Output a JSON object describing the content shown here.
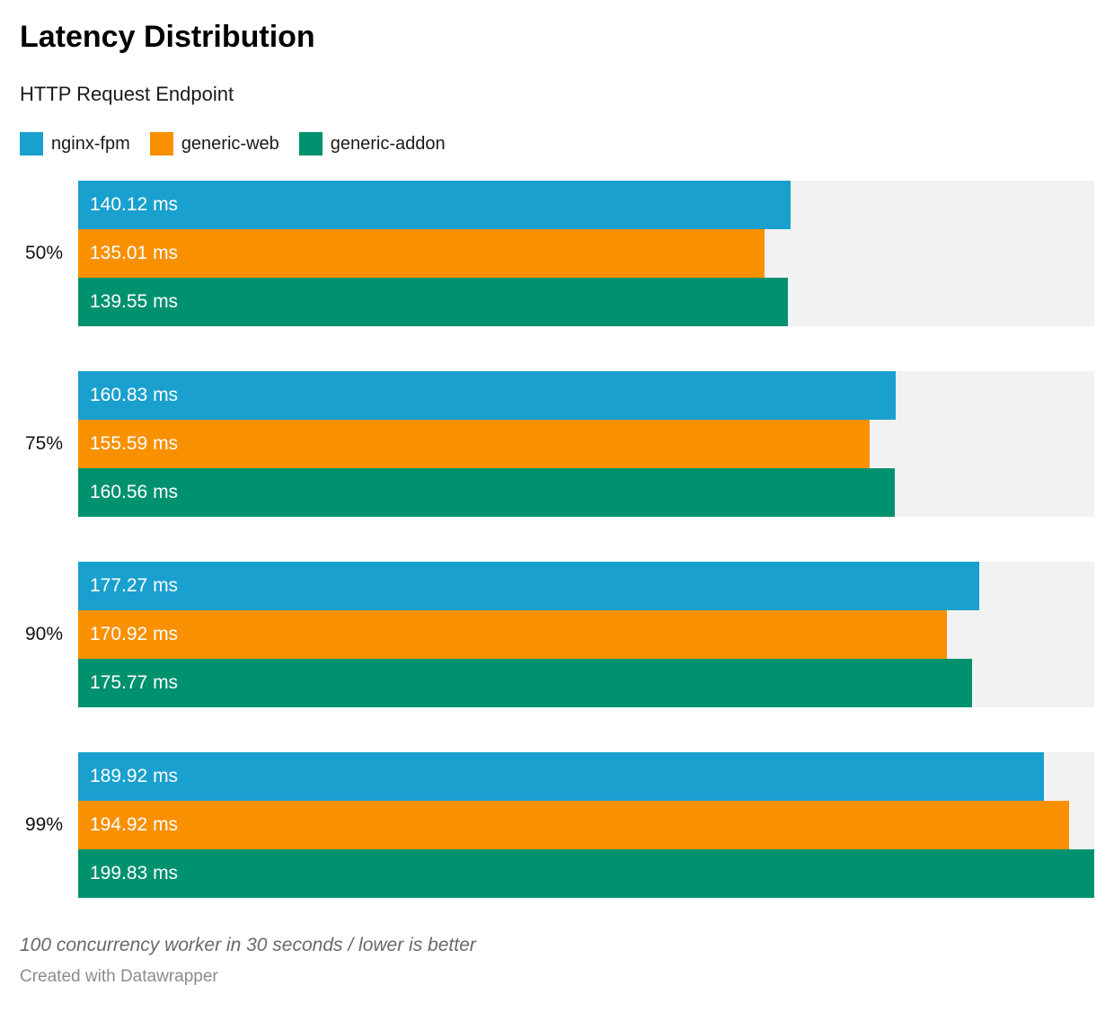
{
  "header": {
    "title": "Latency Distribution",
    "subtitle": "HTTP Request Endpoint"
  },
  "chart_data": {
    "type": "bar",
    "orientation": "horizontal",
    "title": "Latency Distribution",
    "subtitle": "HTTP Request Endpoint",
    "categories": [
      "50%",
      "75%",
      "90%",
      "99%"
    ],
    "series": [
      {
        "name": "nginx-fpm",
        "color": "#1aa0ce",
        "values": [
          140.12,
          160.83,
          177.27,
          189.92
        ]
      },
      {
        "name": "generic-web",
        "color": "#f89000",
        "values": [
          135.01,
          155.59,
          170.92,
          194.92
        ]
      },
      {
        "name": "generic-addon",
        "color": "#00916f",
        "values": [
          139.55,
          160.56,
          175.77,
          199.83
        ]
      }
    ],
    "value_suffix": " ms",
    "xlim": [
      0,
      199.83
    ],
    "xlabel": "",
    "ylabel": "",
    "grid": false,
    "legend_position": "top",
    "track_color": "#f2f2f2",
    "bar_label_color": "#ffffff"
  },
  "footer": {
    "note": "100 concurrency worker in 30 seconds / lower is better",
    "attribution": "Created with Datawrapper"
  }
}
